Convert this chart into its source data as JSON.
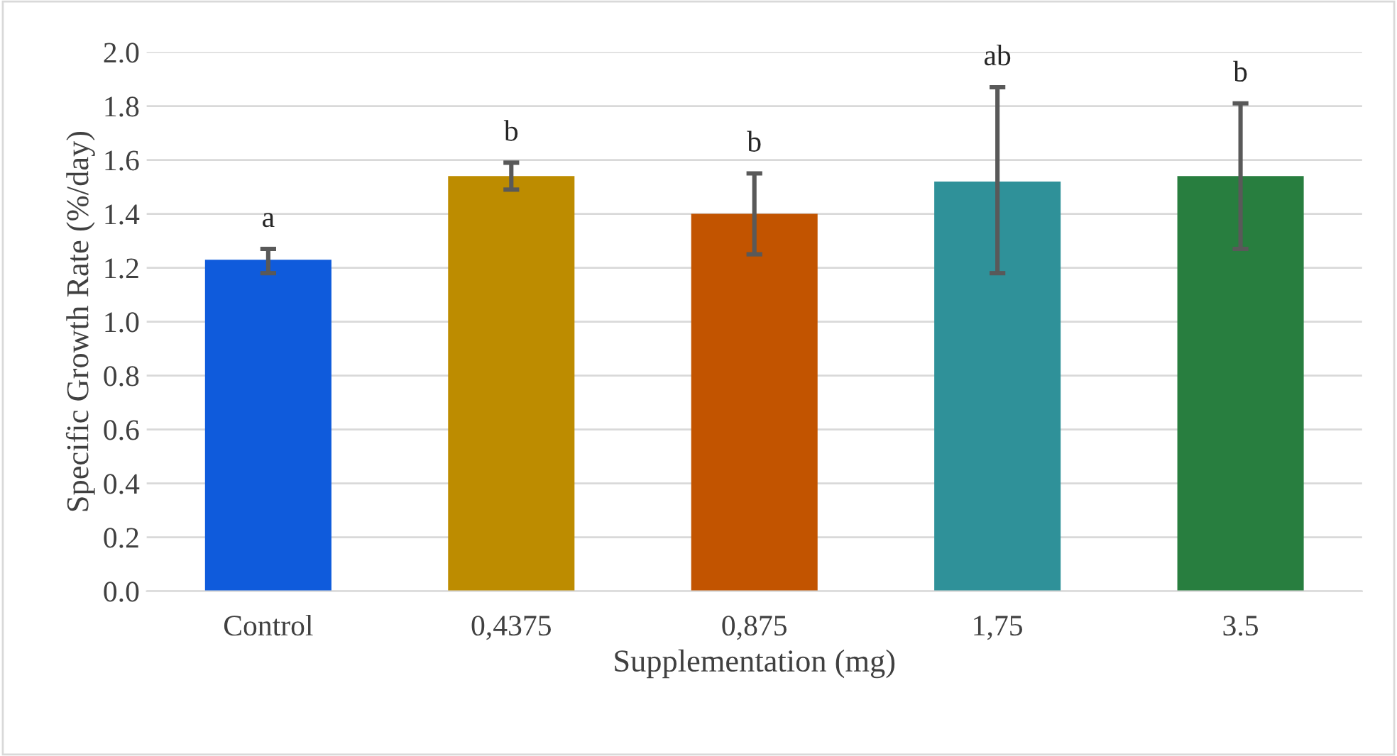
{
  "chart_data": {
    "type": "bar",
    "xlabel": "Supplementation (mg)",
    "ylabel": "Specific Growth Rate (%/day)",
    "categories": [
      "Control",
      "0,4375",
      "0,875",
      "1,75",
      "3.5"
    ],
    "values": [
      1.23,
      1.54,
      1.4,
      1.52,
      1.54
    ],
    "colors": [
      "#0f5bdc",
      "#bd8c00",
      "#c25400",
      "#2f9199",
      "#287e3f"
    ],
    "errors": [
      [
        1.18,
        1.27
      ],
      [
        1.49,
        1.59
      ],
      [
        1.25,
        1.55
      ],
      [
        1.18,
        1.87
      ],
      [
        1.27,
        1.81
      ]
    ],
    "ylim": [
      0,
      2.0
    ],
    "yticks": [
      {
        "value": 0,
        "label": "0.0"
      },
      {
        "value": 0.2,
        "label": "0.2"
      },
      {
        "value": 0.4,
        "label": "0.4"
      },
      {
        "value": 0.6,
        "label": "0.6"
      },
      {
        "value": 0.8,
        "label": "0.8"
      },
      {
        "value": 1.0,
        "label": "1.0"
      },
      {
        "value": 1.2,
        "label": "1.2"
      },
      {
        "value": 1.4,
        "label": "1.4"
      },
      {
        "value": 1.6,
        "label": "1.6"
      },
      {
        "value": 1.8,
        "label": "1.8"
      },
      {
        "value": 2.0,
        "label": "2.0"
      }
    ],
    "grid": "y",
    "annotations": [
      {
        "text": "a",
        "x": "Control",
        "y": 1.27
      },
      {
        "text": "b",
        "x": "0,4375",
        "y": 1.59
      },
      {
        "text": "b",
        "x": "0,875",
        "y": 1.55
      },
      {
        "text": "ab",
        "x": "1,75",
        "y": 1.87
      },
      {
        "text": "b",
        "x": "3.5",
        "y": 1.81
      }
    ]
  }
}
